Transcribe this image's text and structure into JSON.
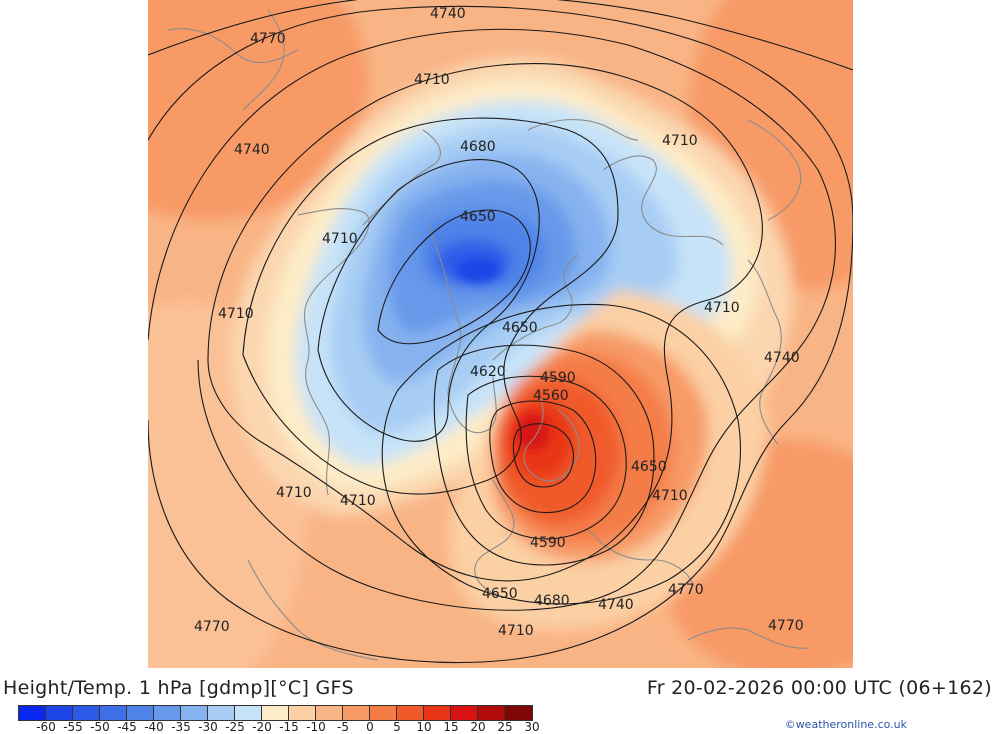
{
  "title_left": "Height/Temp. 1 hPa [gdmp][°C] GFS",
  "title_right": "Fr 20-02-2026 00:00 UTC (06+162)",
  "credit": "©weatheronline.co.uk",
  "colorbar": {
    "ticks": [
      "-60",
      "-55",
      "-50",
      "-45",
      "-40",
      "-35",
      "-30",
      "-25",
      "-20",
      "-15",
      "-10",
      "-5",
      "0",
      "5",
      "10",
      "15",
      "20",
      "25",
      "30"
    ],
    "colors": [
      "#0a28f0",
      "#1e46e6",
      "#2d5be8",
      "#3f6fe6",
      "#4f83e8",
      "#6699ea",
      "#86b2ef",
      "#a8cdf4",
      "#c7e3f8",
      "#fdecc8",
      "#fbd0a4",
      "#f9b485",
      "#f79a66",
      "#f47c46",
      "#f05a2a",
      "#e83418",
      "#d81212",
      "#b00a0a",
      "#7e0606"
    ]
  },
  "contour_labels": [
    {
      "label": "4740"
    },
    {
      "label": "4770"
    },
    {
      "label": "4710"
    },
    {
      "label": "4740"
    },
    {
      "label": "4680"
    },
    {
      "label": "4710"
    },
    {
      "label": "4650"
    },
    {
      "label": "4710"
    },
    {
      "label": "4710"
    },
    {
      "label": "4650"
    },
    {
      "label": "4710"
    },
    {
      "label": "4740"
    },
    {
      "label": "4620"
    },
    {
      "label": "4590"
    },
    {
      "label": "4560"
    },
    {
      "label": "4650"
    },
    {
      "label": "4710"
    },
    {
      "label": "4710"
    },
    {
      "label": "4710"
    },
    {
      "label": "4590"
    },
    {
      "label": "4770"
    },
    {
      "label": "4650"
    },
    {
      "label": "4680"
    },
    {
      "label": "4740"
    },
    {
      "label": "4710"
    },
    {
      "label": "4770"
    },
    {
      "label": "4770"
    }
  ]
}
